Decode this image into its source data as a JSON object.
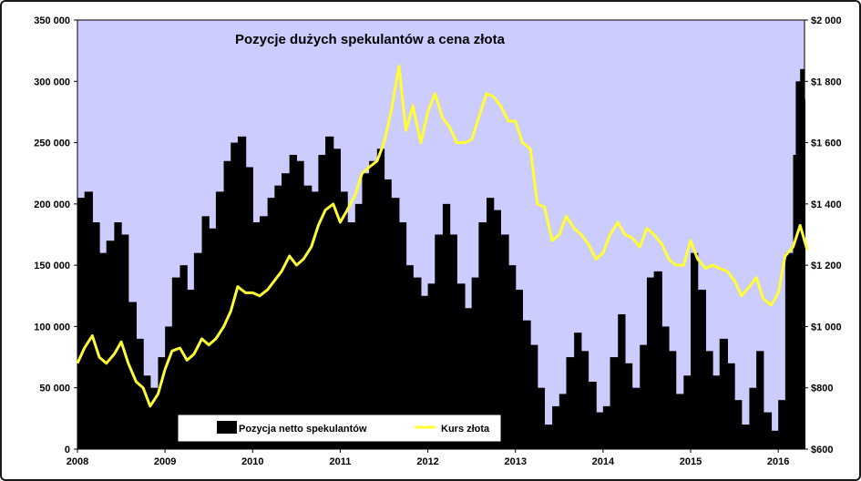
{
  "chart_data": {
    "type": "bar+line",
    "title": "Pozycje dużych spekulantów a cena złota",
    "x_ticks": [
      "2008",
      "2009",
      "2010",
      "2011",
      "2012",
      "2013",
      "2014",
      "2015",
      "2016"
    ],
    "y_left": {
      "ticks": [
        "0",
        "50 000",
        "100 000",
        "150 000",
        "200 000",
        "250 000",
        "300 000",
        "350 000"
      ],
      "range": [
        0,
        350000
      ]
    },
    "y_right": {
      "ticks": [
        "$600",
        "$800",
        "$1 000",
        "$1 200",
        "$1 400",
        "$1 600",
        "$1 800",
        "$2 000"
      ],
      "range": [
        600,
        2000
      ]
    },
    "x_range": [
      2008.0,
      2016.3
    ],
    "plot_background": "#ccccff",
    "series": [
      {
        "name": "Pozycja netto spekulantów",
        "axis": "left",
        "type": "bar",
        "color": "#000000",
        "points": [
          [
            2008.0,
            205000
          ],
          [
            2008.08,
            210000
          ],
          [
            2008.17,
            185000
          ],
          [
            2008.25,
            160000
          ],
          [
            2008.33,
            170000
          ],
          [
            2008.42,
            185000
          ],
          [
            2008.5,
            175000
          ],
          [
            2008.58,
            120000
          ],
          [
            2008.67,
            90000
          ],
          [
            2008.75,
            60000
          ],
          [
            2008.83,
            50000
          ],
          [
            2008.92,
            75000
          ],
          [
            2009.0,
            100000
          ],
          [
            2009.08,
            140000
          ],
          [
            2009.17,
            150000
          ],
          [
            2009.25,
            130000
          ],
          [
            2009.33,
            160000
          ],
          [
            2009.42,
            190000
          ],
          [
            2009.5,
            180000
          ],
          [
            2009.58,
            210000
          ],
          [
            2009.67,
            235000
          ],
          [
            2009.75,
            250000
          ],
          [
            2009.83,
            255000
          ],
          [
            2009.92,
            230000
          ],
          [
            2010.0,
            185000
          ],
          [
            2010.08,
            190000
          ],
          [
            2010.17,
            205000
          ],
          [
            2010.25,
            215000
          ],
          [
            2010.33,
            225000
          ],
          [
            2010.42,
            240000
          ],
          [
            2010.5,
            235000
          ],
          [
            2010.58,
            215000
          ],
          [
            2010.67,
            210000
          ],
          [
            2010.75,
            240000
          ],
          [
            2010.83,
            255000
          ],
          [
            2010.92,
            245000
          ],
          [
            2011.0,
            210000
          ],
          [
            2011.08,
            185000
          ],
          [
            2011.17,
            200000
          ],
          [
            2011.25,
            225000
          ],
          [
            2011.33,
            235000
          ],
          [
            2011.42,
            245000
          ],
          [
            2011.5,
            220000
          ],
          [
            2011.58,
            205000
          ],
          [
            2011.67,
            185000
          ],
          [
            2011.75,
            150000
          ],
          [
            2011.83,
            140000
          ],
          [
            2011.92,
            125000
          ],
          [
            2012.0,
            135000
          ],
          [
            2012.08,
            175000
          ],
          [
            2012.17,
            200000
          ],
          [
            2012.25,
            175000
          ],
          [
            2012.33,
            135000
          ],
          [
            2012.42,
            115000
          ],
          [
            2012.5,
            140000
          ],
          [
            2012.58,
            185000
          ],
          [
            2012.67,
            205000
          ],
          [
            2012.75,
            195000
          ],
          [
            2012.83,
            175000
          ],
          [
            2012.92,
            150000
          ],
          [
            2013.0,
            130000
          ],
          [
            2013.08,
            105000
          ],
          [
            2013.17,
            85000
          ],
          [
            2013.25,
            50000
          ],
          [
            2013.33,
            20000
          ],
          [
            2013.42,
            35000
          ],
          [
            2013.5,
            45000
          ],
          [
            2013.58,
            75000
          ],
          [
            2013.67,
            95000
          ],
          [
            2013.75,
            80000
          ],
          [
            2013.83,
            55000
          ],
          [
            2013.92,
            30000
          ],
          [
            2014.0,
            35000
          ],
          [
            2014.08,
            75000
          ],
          [
            2014.17,
            110000
          ],
          [
            2014.25,
            70000
          ],
          [
            2014.33,
            50000
          ],
          [
            2014.42,
            85000
          ],
          [
            2014.5,
            140000
          ],
          [
            2014.58,
            145000
          ],
          [
            2014.67,
            100000
          ],
          [
            2014.75,
            80000
          ],
          [
            2014.83,
            45000
          ],
          [
            2014.92,
            60000
          ],
          [
            2015.0,
            160000
          ],
          [
            2015.08,
            130000
          ],
          [
            2015.17,
            80000
          ],
          [
            2015.25,
            60000
          ],
          [
            2015.33,
            90000
          ],
          [
            2015.42,
            70000
          ],
          [
            2015.5,
            40000
          ],
          [
            2015.58,
            20000
          ],
          [
            2015.67,
            50000
          ],
          [
            2015.75,
            80000
          ],
          [
            2015.83,
            30000
          ],
          [
            2015.92,
            15000
          ],
          [
            2016.0,
            40000
          ],
          [
            2016.08,
            160000
          ],
          [
            2016.17,
            240000
          ],
          [
            2016.2,
            300000
          ],
          [
            2016.25,
            310000
          ],
          [
            2016.3,
            285000
          ]
        ]
      },
      {
        "name": "Kurs złota",
        "axis": "right",
        "type": "line",
        "color": "#ffff33",
        "points": [
          [
            2008.0,
            880
          ],
          [
            2008.08,
            930
          ],
          [
            2008.17,
            970
          ],
          [
            2008.25,
            900
          ],
          [
            2008.33,
            880
          ],
          [
            2008.42,
            910
          ],
          [
            2008.5,
            950
          ],
          [
            2008.58,
            880
          ],
          [
            2008.67,
            820
          ],
          [
            2008.75,
            800
          ],
          [
            2008.83,
            740
          ],
          [
            2008.92,
            780
          ],
          [
            2009.0,
            860
          ],
          [
            2009.08,
            920
          ],
          [
            2009.17,
            930
          ],
          [
            2009.25,
            890
          ],
          [
            2009.33,
            910
          ],
          [
            2009.42,
            960
          ],
          [
            2009.5,
            940
          ],
          [
            2009.58,
            960
          ],
          [
            2009.67,
            1000
          ],
          [
            2009.75,
            1050
          ],
          [
            2009.83,
            1130
          ],
          [
            2009.92,
            1110
          ],
          [
            2010.0,
            1110
          ],
          [
            2010.08,
            1100
          ],
          [
            2010.17,
            1120
          ],
          [
            2010.25,
            1150
          ],
          [
            2010.33,
            1180
          ],
          [
            2010.42,
            1230
          ],
          [
            2010.5,
            1200
          ],
          [
            2010.58,
            1220
          ],
          [
            2010.67,
            1260
          ],
          [
            2010.75,
            1330
          ],
          [
            2010.83,
            1380
          ],
          [
            2010.92,
            1400
          ],
          [
            2011.0,
            1340
          ],
          [
            2011.08,
            1380
          ],
          [
            2011.17,
            1430
          ],
          [
            2011.25,
            1500
          ],
          [
            2011.33,
            1520
          ],
          [
            2011.42,
            1540
          ],
          [
            2011.5,
            1600
          ],
          [
            2011.58,
            1700
          ],
          [
            2011.67,
            1850
          ],
          [
            2011.75,
            1640
          ],
          [
            2011.83,
            1720
          ],
          [
            2011.92,
            1600
          ],
          [
            2012.0,
            1700
          ],
          [
            2012.08,
            1760
          ],
          [
            2012.17,
            1680
          ],
          [
            2012.25,
            1650
          ],
          [
            2012.33,
            1600
          ],
          [
            2012.42,
            1600
          ],
          [
            2012.5,
            1610
          ],
          [
            2012.58,
            1680
          ],
          [
            2012.67,
            1760
          ],
          [
            2012.75,
            1750
          ],
          [
            2012.83,
            1720
          ],
          [
            2012.92,
            1670
          ],
          [
            2013.0,
            1670
          ],
          [
            2013.08,
            1600
          ],
          [
            2013.17,
            1580
          ],
          [
            2013.25,
            1400
          ],
          [
            2013.33,
            1390
          ],
          [
            2013.42,
            1280
          ],
          [
            2013.5,
            1300
          ],
          [
            2013.58,
            1360
          ],
          [
            2013.67,
            1320
          ],
          [
            2013.75,
            1300
          ],
          [
            2013.83,
            1270
          ],
          [
            2013.92,
            1220
          ],
          [
            2014.0,
            1240
          ],
          [
            2014.08,
            1300
          ],
          [
            2014.17,
            1340
          ],
          [
            2014.25,
            1300
          ],
          [
            2014.33,
            1290
          ],
          [
            2014.42,
            1260
          ],
          [
            2014.5,
            1320
          ],
          [
            2014.58,
            1300
          ],
          [
            2014.67,
            1270
          ],
          [
            2014.75,
            1220
          ],
          [
            2014.83,
            1200
          ],
          [
            2014.92,
            1200
          ],
          [
            2015.0,
            1280
          ],
          [
            2015.08,
            1220
          ],
          [
            2015.17,
            1190
          ],
          [
            2015.25,
            1200
          ],
          [
            2015.33,
            1190
          ],
          [
            2015.42,
            1180
          ],
          [
            2015.5,
            1150
          ],
          [
            2015.58,
            1100
          ],
          [
            2015.67,
            1130
          ],
          [
            2015.75,
            1160
          ],
          [
            2015.83,
            1090
          ],
          [
            2015.92,
            1070
          ],
          [
            2016.0,
            1110
          ],
          [
            2016.08,
            1230
          ],
          [
            2016.17,
            1260
          ],
          [
            2016.25,
            1330
          ],
          [
            2016.33,
            1250
          ]
        ]
      }
    ],
    "legend_position": "bottom-center"
  }
}
